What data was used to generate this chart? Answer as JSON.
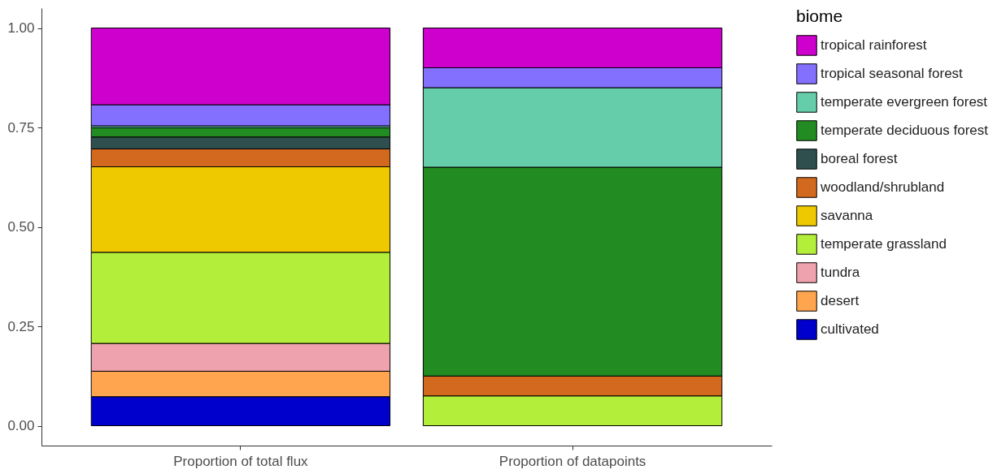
{
  "chart_data": {
    "type": "bar",
    "stacked": true,
    "legend_title": "biome",
    "legend": "right",
    "grid": false,
    "categories": [
      "Proportion of total flux",
      "Proportion of datapoints"
    ],
    "ylim": [
      -0.05,
      1.05
    ],
    "yticks": [
      {
        "value": 0,
        "label": "0.00"
      },
      {
        "value": 0.25,
        "label": "0.25"
      },
      {
        "value": 0.5,
        "label": "0.50"
      },
      {
        "value": 0.75,
        "label": "0.75"
      },
      {
        "value": 1,
        "label": "1.00"
      }
    ],
    "series": [
      {
        "name": "cultivated",
        "color": "#0000cd",
        "values": [
          0.073,
          null
        ]
      },
      {
        "name": "desert",
        "color": "#ffa54f",
        "values": [
          0.064,
          null
        ]
      },
      {
        "name": "tundra",
        "color": "#eea2ad",
        "values": [
          0.07,
          null
        ]
      },
      {
        "name": "temperate grassland",
        "color": "#b3ee3a",
        "values": [
          0.229,
          0.075
        ]
      },
      {
        "name": "savanna",
        "color": "#eec900",
        "values": [
          0.215,
          null
        ]
      },
      {
        "name": "woodland/shrubland",
        "color": "#d2691e",
        "values": [
          0.045,
          0.05
        ]
      },
      {
        "name": "boreal forest",
        "color": "#2f4f4f",
        "values": [
          0.03,
          null
        ]
      },
      {
        "name": "temperate deciduous forest",
        "color": "#228b22",
        "values": [
          0.023,
          0.525
        ]
      },
      {
        "name": "temperate evergreen forest",
        "color": "#66cdaa",
        "values": [
          0.005,
          0.2
        ]
      },
      {
        "name": "tropical seasonal forest",
        "color": "#8470ff",
        "values": [
          0.053,
          0.05
        ]
      },
      {
        "name": "tropical rainforest",
        "color": "#cd00cd",
        "values": [
          0.193,
          0.1
        ]
      }
    ]
  }
}
